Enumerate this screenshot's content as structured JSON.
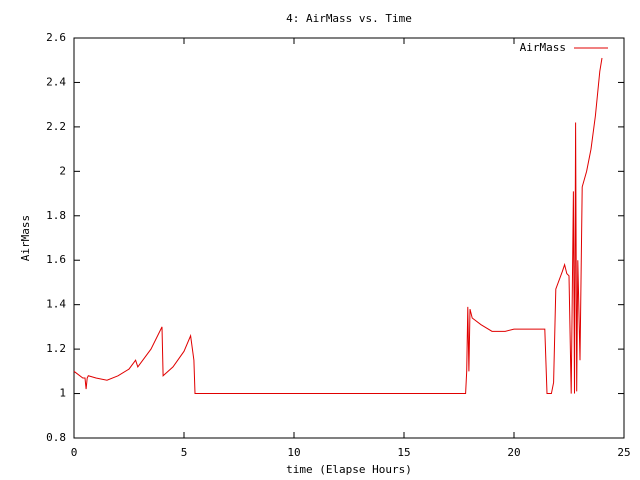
{
  "chart_data": {
    "type": "line",
    "title": "4: AirMass vs. Time",
    "xlabel": "time (Elapse Hours)",
    "ylabel": "AirMass",
    "x": [
      0,
      0.4,
      0.5,
      0.55,
      0.6,
      0.65,
      1,
      1.5,
      2,
      2.5,
      2.8,
      2.9,
      3.5,
      4,
      4.05,
      4.5,
      5,
      5.3,
      5.45,
      5.5,
      17.8,
      17.85,
      17.9,
      17.95,
      18.0,
      18.1,
      18.5,
      19,
      19.6,
      20,
      21.4,
      21.5,
      21.7,
      21.8,
      21.9,
      22.2,
      22.3,
      22.4,
      22.5,
      22.6,
      22.7,
      22.75,
      22.8,
      22.85,
      22.9,
      23.0,
      23.1,
      23.3,
      23.5,
      23.7,
      23.9,
      24.0
    ],
    "series": [
      {
        "name": "AirMass",
        "color": "#e00000",
        "values": [
          1.1,
          1.07,
          1.07,
          1.02,
          1.07,
          1.08,
          1.07,
          1.06,
          1.08,
          1.11,
          1.15,
          1.12,
          1.2,
          1.3,
          1.08,
          1.12,
          1.19,
          1.26,
          1.15,
          1.0,
          1.0,
          1.1,
          1.39,
          1.1,
          1.38,
          1.34,
          1.31,
          1.28,
          1.28,
          1.29,
          1.29,
          1.0,
          1.0,
          1.05,
          1.47,
          1.55,
          1.58,
          1.54,
          1.53,
          1.0,
          1.91,
          1.0,
          2.22,
          1.01,
          1.6,
          1.15,
          1.93,
          2.0,
          2.1,
          2.25,
          2.45,
          2.51
        ]
      }
    ],
    "xlim": [
      0,
      25
    ],
    "xticks": [
      0,
      5,
      10,
      15,
      20,
      25
    ],
    "ylim": [
      0.8,
      2.6
    ],
    "yticks": [
      0.8,
      1,
      1.2,
      1.4,
      1.6,
      1.8,
      2,
      2.2,
      2.4,
      2.6
    ],
    "legend": "top-right"
  }
}
